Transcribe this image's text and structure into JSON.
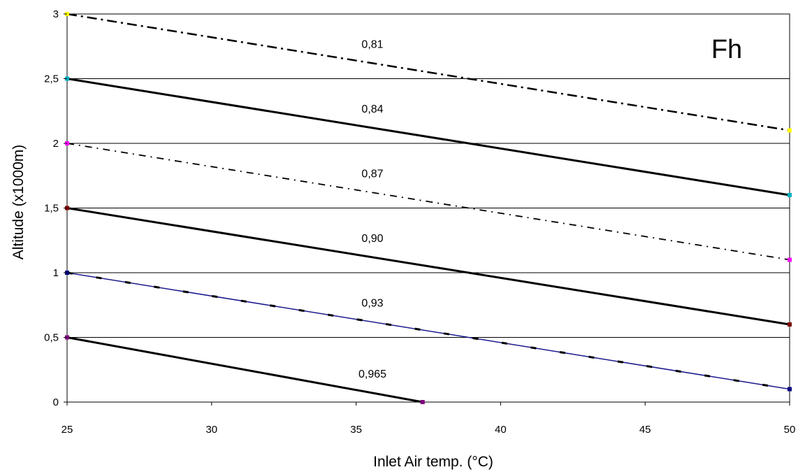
{
  "chart_data": {
    "type": "line",
    "title": "Fh",
    "xlabel": "Inlet Air temp. (°C)",
    "ylabel": "Altitude (x1000m)",
    "xlim": [
      25,
      50
    ],
    "ylim": [
      0,
      3
    ],
    "xticks": [
      25,
      30,
      35,
      40,
      45,
      50
    ],
    "xtick_labels": [
      "25",
      "30",
      "35",
      "40",
      "45",
      "50"
    ],
    "yticks": [
      0,
      0.5,
      1,
      1.5,
      2,
      2.5,
      3
    ],
    "ytick_labels": [
      "0",
      "0,5",
      "1",
      "1,5",
      "2",
      "2,5",
      "3"
    ],
    "grid": "horizontal",
    "series": [
      {
        "name": "0,81",
        "x": [
          25,
          50
        ],
        "y": [
          3.0,
          2.1
        ],
        "style": "dashdot",
        "color": "#000000",
        "marker_color": "#ffff00"
      },
      {
        "name": "0,84",
        "x": [
          25,
          50
        ],
        "y": [
          2.5,
          1.6
        ],
        "style": "solid",
        "color": "#000000",
        "marker_color": "#00b0c0"
      },
      {
        "name": "0,87",
        "x": [
          25,
          50
        ],
        "y": [
          2.0,
          1.1
        ],
        "style": "dashdot-thin",
        "color": "#000000",
        "marker_color": "#ff00ff"
      },
      {
        "name": "0,90",
        "x": [
          25,
          50
        ],
        "y": [
          1.5,
          0.6
        ],
        "style": "solid",
        "color": "#000000",
        "marker_color": "#800000"
      },
      {
        "name": "0,93",
        "x": [
          25,
          50
        ],
        "y": [
          1.0,
          0.1
        ],
        "style": "blue-dashed",
        "color": "#1a1a8c",
        "marker_color": "#000080"
      },
      {
        "name": "0,965",
        "x": [
          25,
          37.3
        ],
        "y": [
          0.5,
          0.0
        ],
        "style": "solid",
        "color": "#000000",
        "marker_color": "#800080"
      }
    ]
  }
}
